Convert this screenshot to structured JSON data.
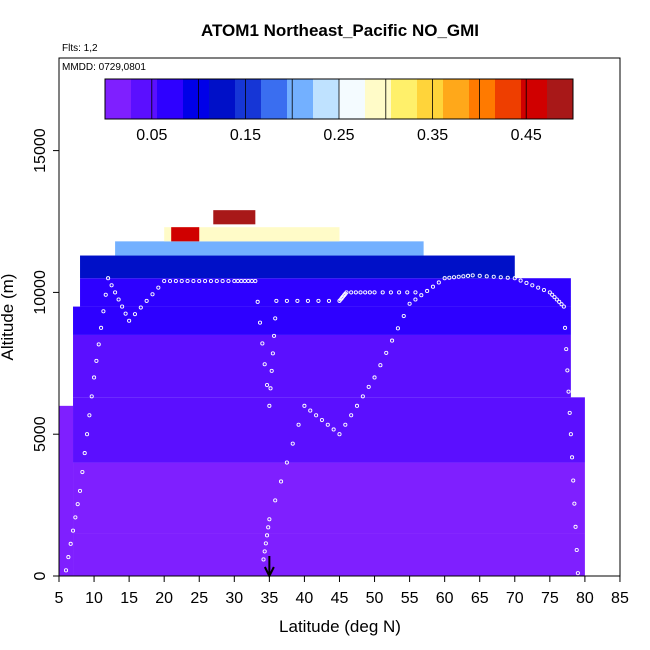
{
  "chart_data": {
    "type": "heatmap",
    "title": "ATOM1 Northeast_Pacific NO_GMI",
    "flights_note": "Flts: 1,2",
    "date_note": "MMDD: 0729,0801",
    "xlabel": "Latitude (deg N)",
    "ylabel": "Altitude (m)",
    "xlim": [
      5,
      85
    ],
    "ylim": [
      0,
      17800
    ],
    "x_ticks": [
      "5",
      "10",
      "15",
      "20",
      "25",
      "30",
      "35",
      "40",
      "45",
      "50",
      "55",
      "60",
      "65",
      "70",
      "75",
      "80",
      "85"
    ],
    "y_ticks": [
      "0",
      "5000",
      "10000",
      "15000"
    ],
    "colorbar": {
      "range": [
        0,
        0.5
      ],
      "tick_labels": [
        "0.05",
        "0.15",
        "0.25",
        "0.35",
        "0.45"
      ],
      "tick_values": [
        0.05,
        0.15,
        0.25,
        0.35,
        0.45
      ],
      "colors": [
        "#7f1fff",
        "#5b0fff",
        "#2e00ff",
        "#0000e8",
        "#0010c8",
        "#1636d6",
        "#3a6ef0",
        "#73b0ff",
        "#bfe2ff",
        "#f4fbff",
        "#fffbc8",
        "#fff06a",
        "#ffd43a",
        "#ffa81a",
        "#ff7a00",
        "#ee3e00",
        "#d00000",
        "#a81818"
      ]
    },
    "grid": false,
    "marker_latitude": 35,
    "profile_cells": [
      {
        "lat0": 5,
        "lat1": 7,
        "alt0": 0,
        "alt1": 6000,
        "value": 0.02
      },
      {
        "lat0": 7,
        "lat1": 80,
        "alt0": 0,
        "alt1": 1500,
        "value": 0.02
      },
      {
        "lat0": 7,
        "lat1": 80,
        "alt0": 1500,
        "alt1": 4000,
        "value": 0.025
      },
      {
        "lat0": 7,
        "lat1": 80,
        "alt0": 4000,
        "alt1": 6300,
        "value": 0.03
      },
      {
        "lat0": 7,
        "lat1": 78,
        "alt0": 6300,
        "alt1": 8500,
        "value": 0.04
      },
      {
        "lat0": 7,
        "lat1": 78,
        "alt0": 8500,
        "alt1": 9500,
        "value": 0.06
      },
      {
        "lat0": 8,
        "lat1": 78,
        "alt0": 9500,
        "alt1": 10500,
        "value": 0.08
      },
      {
        "lat0": 8,
        "lat1": 70,
        "alt0": 10500,
        "alt1": 11300,
        "value": 0.12
      },
      {
        "lat0": 13,
        "lat1": 57,
        "alt0": 11300,
        "alt1": 11800,
        "value": 0.2
      },
      {
        "lat0": 20,
        "lat1": 45,
        "alt0": 11800,
        "alt1": 12300,
        "value": 0.3
      },
      {
        "lat0": 21,
        "lat1": 25,
        "alt0": 11800,
        "alt1": 12300,
        "value": 0.47
      },
      {
        "lat0": 27,
        "lat1": 33,
        "alt0": 12400,
        "alt1": 12900,
        "value": 0.5
      }
    ],
    "flight_tracks": [
      {
        "name": "flight-1",
        "points": [
          [
            6,
            200
          ],
          [
            8,
            3000
          ],
          [
            10,
            7000
          ],
          [
            12,
            10500
          ],
          [
            15,
            9000
          ],
          [
            20,
            10400
          ],
          [
            25,
            10400
          ],
          [
            30,
            10400
          ],
          [
            33,
            10400
          ],
          [
            35,
            6000
          ],
          [
            36,
            9700
          ],
          [
            45,
            9700
          ],
          [
            46,
            10000
          ],
          [
            50,
            10000
          ],
          [
            57,
            10000
          ]
        ]
      },
      {
        "name": "flight-2",
        "points": [
          [
            79,
            100
          ],
          [
            78,
            5000
          ],
          [
            77,
            9500
          ],
          [
            75,
            10000
          ],
          [
            70,
            10500
          ],
          [
            64,
            10600
          ],
          [
            60,
            10500
          ],
          [
            55,
            9600
          ],
          [
            50,
            7000
          ],
          [
            45,
            5000
          ],
          [
            40,
            6000
          ],
          [
            35,
            2000
          ],
          [
            34,
            300
          ]
        ]
      }
    ]
  }
}
